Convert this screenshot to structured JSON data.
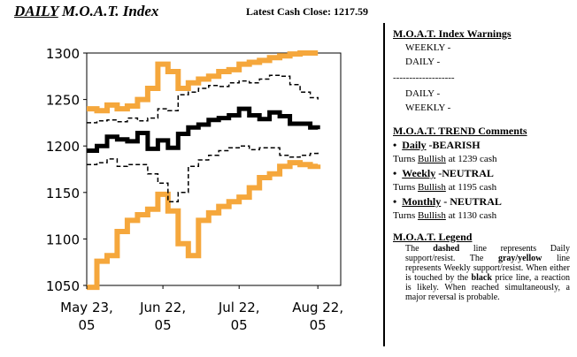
{
  "header": {
    "title_prefix": "DAILY",
    "title_rest": " M.O.A.T. Index",
    "cash_close": "Latest Cash Close: 1217.59"
  },
  "chart_data": {
    "type": "line",
    "title": "DAILY M.O.A.T. Index",
    "ylim": [
      1050,
      1300
    ],
    "yticks": [
      1050,
      1100,
      1150,
      1200,
      1250,
      1300
    ],
    "xticks": [
      {
        "line1": "May 23,",
        "line2": "05",
        "day": 0
      },
      {
        "line1": "Jun 22,",
        "line2": "05",
        "day": 30
      },
      {
        "line1": "Jul 22,",
        "line2": "05",
        "day": 60
      },
      {
        "line1": "Aug 22,",
        "line2": "05",
        "day": 91
      }
    ],
    "x": [
      0,
      4,
      8,
      12,
      16,
      20,
      24,
      28,
      32,
      36,
      40,
      44,
      48,
      52,
      56,
      60,
      64,
      68,
      72,
      76,
      80,
      84,
      88,
      91
    ],
    "series": [
      {
        "style": "price",
        "color": "#000000",
        "values": [
          1195,
          1200,
          1210,
          1207,
          1205,
          1214,
          1197,
          1206,
          1198,
          1213,
          1220,
          1223,
          1228,
          1230,
          1233,
          1240,
          1233,
          1229,
          1236,
          1232,
          1224,
          1224,
          1220,
          1218
        ]
      },
      {
        "style": "dashed",
        "color": "#000000",
        "values": [
          1225,
          1227,
          1228,
          1226,
          1230,
          1227,
          1230,
          1240,
          1238,
          1255,
          1258,
          1262,
          1265,
          1264,
          1268,
          1270,
          1268,
          1272,
          1276,
          1275,
          1266,
          1258,
          1252,
          1250
        ]
      },
      {
        "style": "dashed",
        "color": "#000000",
        "values": [
          1180,
          1182,
          1186,
          1178,
          1180,
          1180,
          1170,
          1160,
          1140,
          1150,
          1178,
          1185,
          1190,
          1195,
          1198,
          1200,
          1196,
          1198,
          1198,
          1190,
          1188,
          1190,
          1192,
          1194
        ]
      },
      {
        "style": "weekly",
        "color": "#F5A73C",
        "values": [
          1240,
          1238,
          1244,
          1240,
          1243,
          1250,
          1262,
          1288,
          1280,
          1262,
          1268,
          1272,
          1275,
          1280,
          1282,
          1288,
          1290,
          1292,
          1295,
          1297,
          1299,
          1300,
          1300,
          1300
        ]
      },
      {
        "style": "weekly",
        "color": "#F5A73C",
        "values": [
          1048,
          1076,
          1082,
          1108,
          1120,
          1126,
          1132,
          1148,
          1130,
          1095,
          1082,
          1120,
          1128,
          1135,
          1140,
          1145,
          1155,
          1166,
          1170,
          1178,
          1182,
          1180,
          1178,
          1180
        ]
      }
    ]
  },
  "panel": {
    "warnings_head": "M.O.A.T. Index Warnings",
    "weekly_warn": "WEEKLY -",
    "daily_warn": "DAILY -",
    "separator": "-------------------",
    "daily_warn2": "DAILY -",
    "weekly_warn2": "WEEKLY -",
    "trend_head": "M.O.A.T. TREND Comments",
    "daily_name": "Daily",
    "daily_status": " -BEARISH",
    "daily_turns_pre": "Turns ",
    "daily_turns_word": "Bullish",
    "daily_turns_post": " at 1239 cash",
    "weekly_name": "Weekly",
    "weekly_status": " -NEUTRAL",
    "weekly_turns_pre": "Turns ",
    "weekly_turns_word": "Bullish",
    "weekly_turns_post": " at 1195 cash",
    "monthly_name": "Monthly",
    "monthly_status": " - NEUTRAL",
    "monthly_turns_pre": "Turns ",
    "monthly_turns_word": "Bullish",
    "monthly_turns_post": " at 1130 cash",
    "legend_head": "M.O.A.T. Legend",
    "legend_1": "The ",
    "legend_2": "dashed",
    "legend_3": " line represents Daily support/resist. The ",
    "legend_4": "gray/yellow",
    "legend_5": " line represents Weekly support/resist. When either is touched by the ",
    "legend_6": "black",
    "legend_7": " price line, a reaction is likely. When reached simultaneously, a major reversal is probable."
  }
}
